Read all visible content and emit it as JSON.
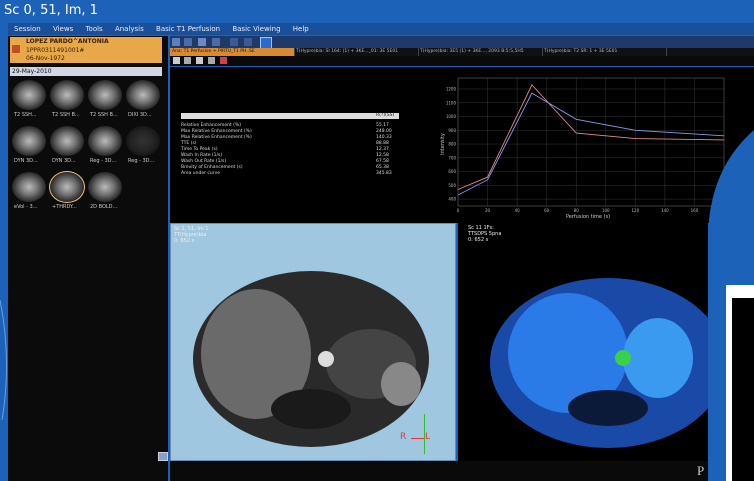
{
  "window": {
    "title": "Sc 0, 51, Im, 1"
  },
  "menu": [
    "Session",
    "Views",
    "Tools",
    "Analysis",
    "Basic T1 Perfusion",
    "Basic Viewing",
    "Help"
  ],
  "patient": {
    "name": "LOPEZ PARDO^ANTONIA",
    "id": "1PPR0311491001#",
    "dob": "06-Nov-1972",
    "study_date": "29-May-2010"
  },
  "thumbnails": [
    {
      "label": "T2 SSH..."
    },
    {
      "label": "T2 SSH B..."
    },
    {
      "label": "T2 SSH B..."
    },
    {
      "label": "DIXI 3D..."
    },
    {
      "label": "DYN 3D..."
    },
    {
      "label": "DYN 3D..."
    },
    {
      "label": "Reg - 3D..."
    },
    {
      "label": "Reg - 3D..."
    },
    {
      "label": "eVol - 3..."
    },
    {
      "label": "+THRDY..."
    },
    {
      "label": "2D BOLD..."
    }
  ],
  "tabs": [
    "Ana: T1 Perfusion + PIRTU_T1 PH..SE",
    "T(Hypre)bia: SI 164: (1) + 3KE..._01: 3E 5E01",
    "T(Hypre)bia: 3E5 (1) + 3KE..., 2093 B:5:5,5H5",
    "T(Hypre)bia: T2 SR: 1 + 3E 5E01"
  ],
  "parameters": {
    "header_value": "R(?)(SS)",
    "rows": [
      {
        "label": "Relative Enhancement (%)",
        "value": "55.17"
      },
      {
        "label": "Max Relative Enhancement (%)",
        "value": "248.00"
      },
      {
        "label": "Max Relative Enhancement (%)",
        "value": "140.33"
      },
      {
        "label": "TTE (s)",
        "value": "88.88"
      },
      {
        "label": "Time To Peak (s)",
        "value": "12.37"
      },
      {
        "label": "Wash In Rate (1/s)",
        "value": "12.58"
      },
      {
        "label": "Wash Out Rate (1/s)",
        "value": "67.58"
      },
      {
        "label": "Brevity of Enhancement (s)",
        "value": "65.38"
      },
      {
        "label": "Area under curve",
        "value": "345.83"
      }
    ]
  },
  "chart_data": {
    "type": "line",
    "xlabel": "Perfusion time (s)",
    "ylabel": "Intensity",
    "x": [
      0,
      20,
      50,
      80,
      120,
      180
    ],
    "xlim": [
      0,
      180
    ],
    "ylim": [
      350,
      1280
    ],
    "xticks": [
      0,
      20,
      40,
      60,
      80,
      100,
      120,
      140,
      160
    ],
    "yticks": [
      400,
      500,
      600,
      700,
      800,
      900,
      1000,
      1100,
      1200
    ],
    "series": [
      {
        "name": "",
        "color": "#e08a8a",
        "values": [
          470,
          560,
          1230,
          880,
          840,
          830
        ]
      },
      {
        "name": "",
        "color": "#8a9ae8",
        "values": [
          430,
          540,
          1170,
          980,
          900,
          860
        ]
      }
    ]
  },
  "viewport_left": {
    "overlay_lines": [
      "Sc 1, 51, Im 1",
      "TT(Hypre)bia",
      "0: 652 s"
    ],
    "orient_left": "R",
    "orient_right": "L"
  },
  "viewport_right": {
    "overlay_lines": [
      "Sc 11 1Fs:",
      "TTSDPS 5pna",
      "0: 652 s"
    ]
  },
  "bottom_text": "P"
}
